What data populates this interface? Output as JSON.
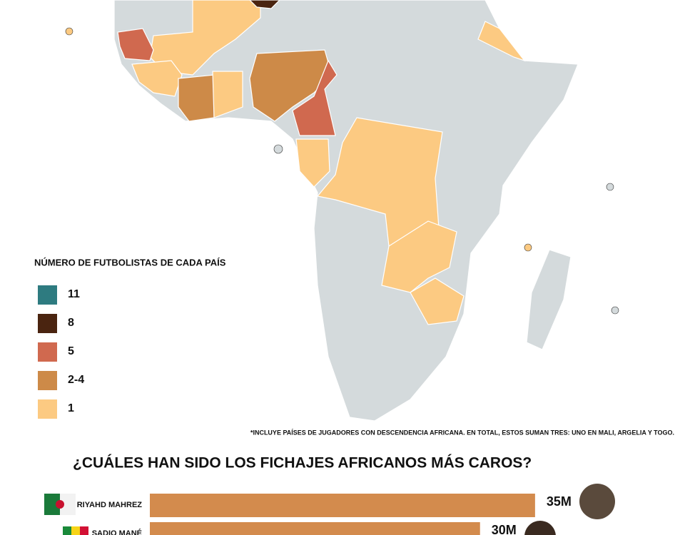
{
  "map": {
    "legend_title": "NÚMERO DE FUTBOLISTAS DE CADA PAÍS",
    "legend": [
      {
        "label": "11",
        "color": "#2e7b80"
      },
      {
        "label": "8",
        "color": "#4a2410"
      },
      {
        "label": "5",
        "color": "#d0694f"
      },
      {
        "label": "2-4",
        "color": "#cd8a48"
      },
      {
        "label": "1",
        "color": "#fcca82"
      }
    ],
    "footnote": "*INCLUYE PAÍSES DE JUGADORES CON DESCENDENCIA AFRICANA. EN TOTAL, ESTOS SUMAN TRES: UNO EN MALI, ARGELIA Y TOGO."
  },
  "chart_data": {
    "type": "bar",
    "orientation": "horizontal",
    "title": "¿CUÁLES HAN SIDO LOS FICHAJES AFRICANOS MÁS CAROS?",
    "categories": [
      "RIYAHD MAHREZ",
      "SADIO MANÉ"
    ],
    "values": [
      35,
      30
    ],
    "value_labels": [
      "35M",
      "30M"
    ],
    "color": "#d38b4d",
    "xlim": [
      0,
      40
    ]
  }
}
